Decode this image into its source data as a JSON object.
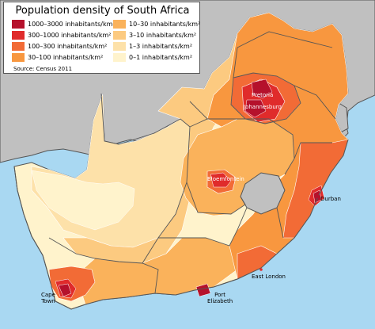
{
  "title": "Population density of South Africa",
  "source": "Source: Census 2011",
  "legend": [
    {
      "label": "1000–3000 inhabitants/km²",
      "color": "#b5112c"
    },
    {
      "label": "300–1000 inhabitants/km²",
      "color": "#e02b2b"
    },
    {
      "label": "100–300 inhabitants/km²",
      "color": "#f26b36"
    },
    {
      "label": "30–100 inhabitants/km²",
      "color": "#f8973f"
    },
    {
      "label": "10–30 inhabitants/km²",
      "color": "#fab25b"
    },
    {
      "label": "3–10 inhabitants/km²",
      "color": "#fcca80"
    },
    {
      "label": "1–3 inhabitants/km²",
      "color": "#fde1a9"
    },
    {
      "label": "0–1 inhabitants/km²",
      "color": "#fff3cc"
    }
  ],
  "cities": [
    {
      "name": "Pretoria"
    },
    {
      "name": "Johannesburg"
    },
    {
      "name": "Bloemfontein"
    },
    {
      "name": "Durban"
    },
    {
      "name": "East London"
    },
    {
      "name_line1": "Cape",
      "name_line2": "Town"
    },
    {
      "name_line1": "Port",
      "name_line2": "Elizabeth"
    }
  ],
  "colors": {
    "sea": "#a9d8f2",
    "neighbour_countries": "#c0c0c0",
    "lesotho": "#c0c0c0",
    "border": "#555555"
  }
}
